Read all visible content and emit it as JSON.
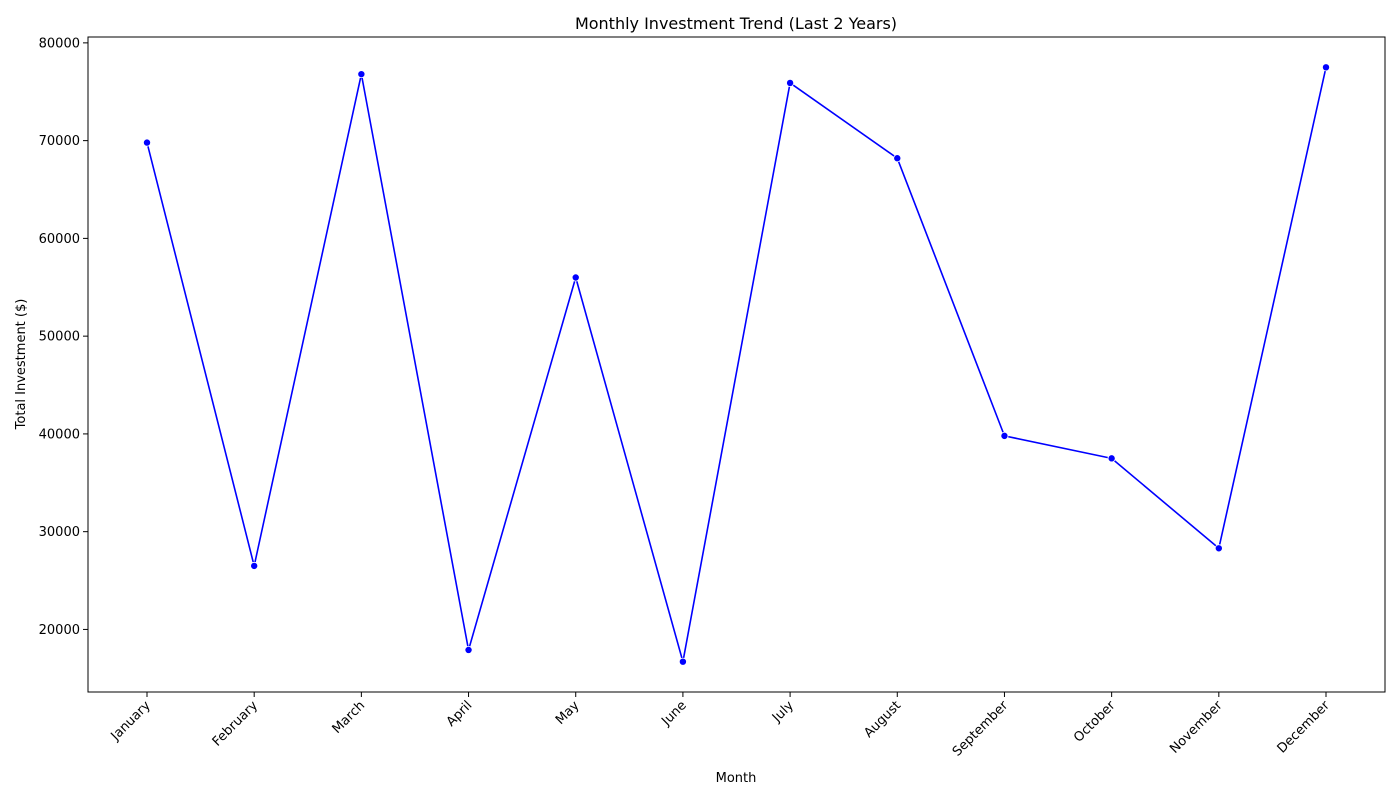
{
  "chart_data": {
    "type": "line",
    "title": "Monthly Investment Trend (Last 2 Years)",
    "xlabel": "Month",
    "ylabel": "Total Investment ($)",
    "categories": [
      "January",
      "February",
      "March",
      "April",
      "May",
      "June",
      "July",
      "August",
      "September",
      "October",
      "November",
      "December"
    ],
    "series": [
      {
        "values": [
          69800,
          26500,
          76800,
          17900,
          56000,
          16700,
          75900,
          68200,
          39800,
          37500,
          28300,
          77500
        ]
      }
    ],
    "ylim": [
      13600,
      80600
    ],
    "yticks": [
      20000,
      30000,
      40000,
      50000,
      60000,
      70000,
      80000
    ],
    "grid": false,
    "line_color": "#0000ff",
    "marker_color": "#0000ff"
  }
}
